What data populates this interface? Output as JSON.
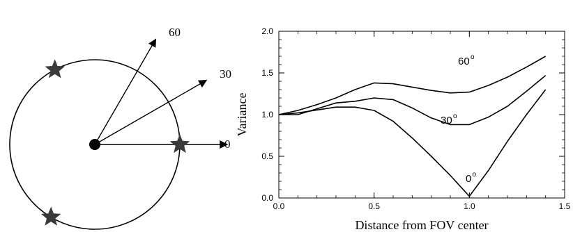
{
  "diagram": {
    "directions": [
      {
        "label": "0",
        "angle_deg": 0
      },
      {
        "label": "30",
        "angle_deg": 30
      },
      {
        "label": "60",
        "angle_deg": 60
      }
    ],
    "star_count": 3,
    "colors": {
      "stroke": "#000000",
      "star": "#3a3a3a",
      "center": "#000000"
    }
  },
  "chart_data": {
    "type": "line",
    "xlabel": "Distance from FOV center",
    "ylabel": "Variance",
    "xlim": [
      0,
      1.5
    ],
    "ylim": [
      0,
      2.0
    ],
    "x_ticks": [
      "0.0",
      "0.5",
      "1.0",
      "1.5"
    ],
    "y_ticks": [
      "0.0",
      "0.5",
      "1.0",
      "1.5",
      "2.0"
    ],
    "grid": false,
    "series": [
      {
        "name": "0",
        "label": "0",
        "superscript": "o",
        "x": [
          0,
          0.1,
          0.3,
          0.4,
          0.5,
          0.6,
          0.7,
          0.8,
          0.9,
          1.0,
          1.1,
          1.2,
          1.3,
          1.4
        ],
        "y": [
          1.0,
          1.02,
          1.09,
          1.09,
          1.05,
          0.92,
          0.72,
          0.5,
          0.27,
          0.02,
          0.33,
          0.68,
          1.0,
          1.3
        ]
      },
      {
        "name": "30",
        "label": "30",
        "superscript": "o",
        "x": [
          0,
          0.1,
          0.2,
          0.3,
          0.4,
          0.5,
          0.6,
          0.7,
          0.8,
          0.9,
          1.0,
          1.1,
          1.2,
          1.3,
          1.4
        ],
        "y": [
          1.0,
          1.0,
          1.07,
          1.14,
          1.16,
          1.2,
          1.18,
          1.08,
          0.96,
          0.88,
          0.88,
          0.97,
          1.1,
          1.28,
          1.47
        ]
      },
      {
        "name": "60",
        "label": "60",
        "superscript": "o",
        "x": [
          0,
          0.1,
          0.2,
          0.3,
          0.4,
          0.5,
          0.6,
          0.7,
          0.8,
          0.9,
          1.0,
          1.1,
          1.2,
          1.3,
          1.4
        ],
        "y": [
          1.0,
          1.05,
          1.12,
          1.2,
          1.3,
          1.38,
          1.37,
          1.33,
          1.29,
          1.26,
          1.27,
          1.35,
          1.45,
          1.57,
          1.7
        ]
      }
    ]
  }
}
